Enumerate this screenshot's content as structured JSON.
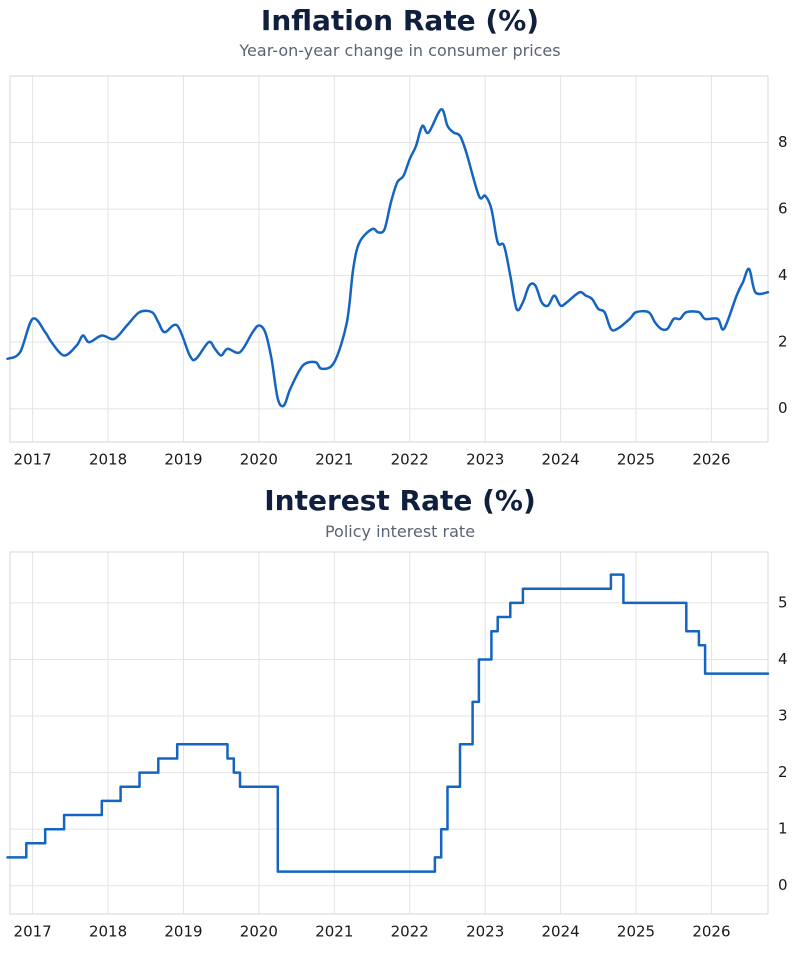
{
  "chart_data": [
    {
      "type": "line",
      "title": "Inflation Rate (%)",
      "subtitle": "Year-on-year change in consumer prices",
      "xlabel": "",
      "ylabel": "",
      "xlim": [
        2016.7,
        2026.75
      ],
      "ylim": [
        -1,
        10
      ],
      "x_ticks": [
        "2017",
        "2018",
        "2019",
        "2020",
        "2021",
        "2022",
        "2023",
        "2024",
        "2025",
        "2026"
      ],
      "y_ticks": [
        0,
        2,
        4,
        6,
        8
      ],
      "grid": true,
      "y_axis_side": "right",
      "color": "#1565c0",
      "series": [
        {
          "x": [
            "2016-09",
            "2016-11",
            "2017-01",
            "2017-03",
            "2017-04",
            "2017-06",
            "2017-08",
            "2017-09",
            "2017-10",
            "2017-12",
            "2018-02",
            "2018-04",
            "2018-06",
            "2018-08",
            "2018-09",
            "2018-10",
            "2018-12",
            "2019-02",
            "2019-03",
            "2019-05",
            "2019-06",
            "2019-07",
            "2019-08",
            "2019-10",
            "2019-12",
            "2020-01",
            "2020-02",
            "2020-03",
            "2020-04",
            "2020-05",
            "2020-06",
            "2020-08",
            "2020-10",
            "2020-11",
            "2021-01",
            "2021-03",
            "2021-04",
            "2021-05",
            "2021-07",
            "2021-08",
            "2021-09",
            "2021-10",
            "2021-11",
            "2021-12",
            "2022-01",
            "2022-02",
            "2022-03",
            "2022-04",
            "2022-06",
            "2022-07",
            "2022-08",
            "2022-09",
            "2022-10",
            "2022-12",
            "2023-01",
            "2023-02",
            "2023-03",
            "2023-04",
            "2023-05",
            "2023-06",
            "2023-07",
            "2023-08",
            "2023-09",
            "2023-10",
            "2023-11",
            "2023-12",
            "2024-01",
            "2024-02",
            "2024-04",
            "2024-05",
            "2024-06",
            "2024-07",
            "2024-08",
            "2024-09",
            "2024-10",
            "2024-12",
            "2025-01",
            "2025-03",
            "2025-04",
            "2025-05",
            "2025-06",
            "2025-07",
            "2025-08",
            "2025-09",
            "2025-11",
            "2025-12",
            "2026-02",
            "2026-03",
            "2026-05",
            "2026-06",
            "2026-07",
            "2026-08",
            "2026-10"
          ],
          "y": [
            1.5,
            1.7,
            2.7,
            2.3,
            2.0,
            1.6,
            1.9,
            2.2,
            2.0,
            2.2,
            2.1,
            2.5,
            2.9,
            2.9,
            2.6,
            2.3,
            2.5,
            1.6,
            1.5,
            2.0,
            1.8,
            1.6,
            1.8,
            1.7,
            2.3,
            2.5,
            2.3,
            1.5,
            0.3,
            0.1,
            0.6,
            1.3,
            1.4,
            1.2,
            1.4,
            2.6,
            4.2,
            5.0,
            5.4,
            5.3,
            5.4,
            6.2,
            6.8,
            7.0,
            7.5,
            7.9,
            8.5,
            8.3,
            9.0,
            8.5,
            8.3,
            8.2,
            7.7,
            6.4,
            6.4,
            6.0,
            5.0,
            4.9,
            4.0,
            3.0,
            3.2,
            3.7,
            3.7,
            3.2,
            3.1,
            3.4,
            3.1,
            3.2,
            3.5,
            3.4,
            3.3,
            3.0,
            2.9,
            2.4,
            2.4,
            2.7,
            2.9,
            2.9,
            2.6,
            2.4,
            2.4,
            2.7,
            2.7,
            2.9,
            2.9,
            2.7,
            2.7,
            2.4,
            3.4,
            3.8,
            4.2,
            3.5,
            3.5
          ]
        }
      ]
    },
    {
      "type": "line",
      "title": "Interest Rate (%)",
      "subtitle": "Policy interest rate",
      "xlabel": "",
      "ylabel": "",
      "xlim": [
        2016.7,
        2026.75
      ],
      "ylim": [
        -0.5,
        5.9
      ],
      "x_ticks": [
        "2017",
        "2018",
        "2019",
        "2020",
        "2021",
        "2022",
        "2023",
        "2024",
        "2025",
        "2026"
      ],
      "y_ticks": [
        0,
        1,
        2,
        3,
        4,
        5
      ],
      "grid": true,
      "y_axis_side": "right",
      "step": true,
      "color": "#1565c0",
      "series": [
        {
          "x": [
            "2016-09",
            "2016-12",
            "2017-03",
            "2017-06",
            "2017-12",
            "2018-03",
            "2018-06",
            "2018-09",
            "2018-12",
            "2019-03",
            "2019-08",
            "2019-09",
            "2019-10",
            "2020-03",
            "2020-04",
            "2022-03",
            "2022-05",
            "2022-06",
            "2022-07",
            "2022-09",
            "2022-11",
            "2022-12",
            "2023-02",
            "2023-03",
            "2023-05",
            "2023-07",
            "2024-09",
            "2024-11",
            "2025-09",
            "2025-11",
            "2025-12",
            "2026-10"
          ],
          "y": [
            0.5,
            0.75,
            1.0,
            1.25,
            1.5,
            1.75,
            2.0,
            2.25,
            2.5,
            2.5,
            2.25,
            2.0,
            1.75,
            1.75,
            0.25,
            0.25,
            0.5,
            1.0,
            1.75,
            2.5,
            3.25,
            4.0,
            4.5,
            4.75,
            5.0,
            5.25,
            5.5,
            5.0,
            4.5,
            4.25,
            3.75,
            3.75
          ]
        }
      ]
    }
  ]
}
